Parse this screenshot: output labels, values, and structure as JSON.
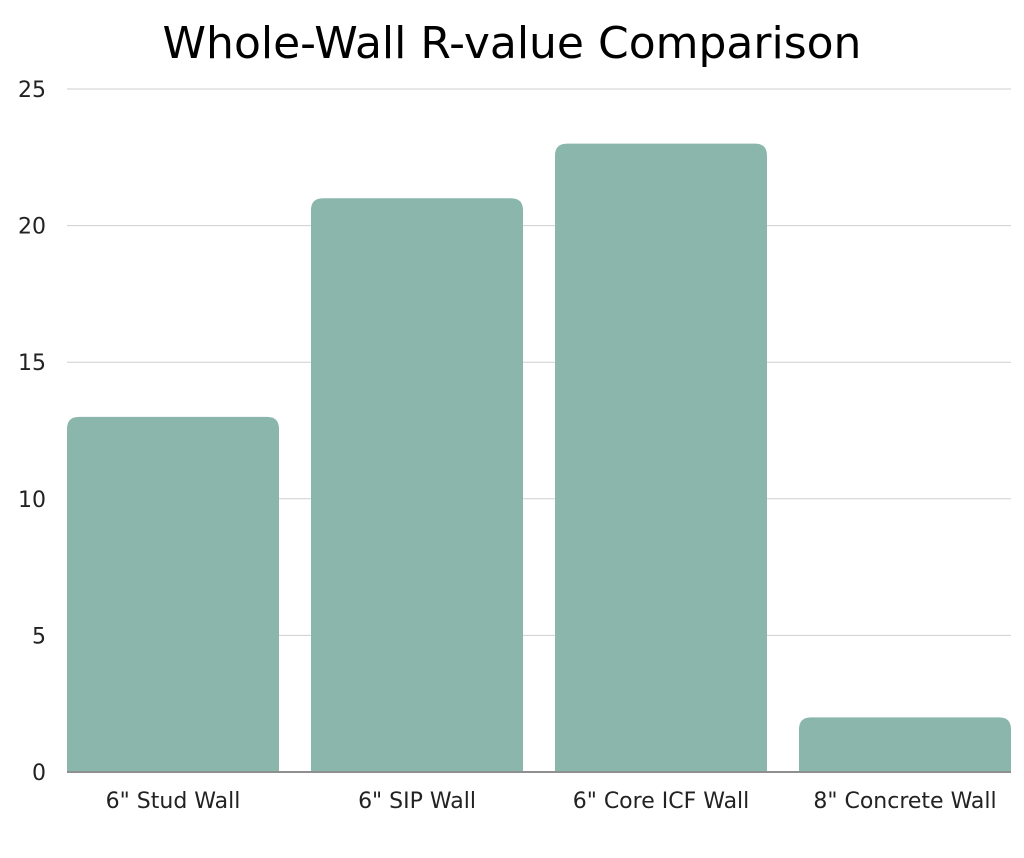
{
  "chart_data": {
    "type": "bar",
    "title": "Whole-Wall R-value Comparison",
    "categories": [
      "6\" Stud Wall",
      "6\" SIP Wall",
      "6\" Core ICF Wall",
      "8\" Concrete Wall"
    ],
    "values": [
      13,
      21,
      23,
      2
    ],
    "xlabel": "",
    "ylabel": "",
    "ylim": [
      0,
      25
    ],
    "yticks": [
      0,
      5,
      10,
      15,
      20,
      25
    ],
    "grid": true,
    "legend": "none",
    "bar_color": "#8AB6AC"
  }
}
